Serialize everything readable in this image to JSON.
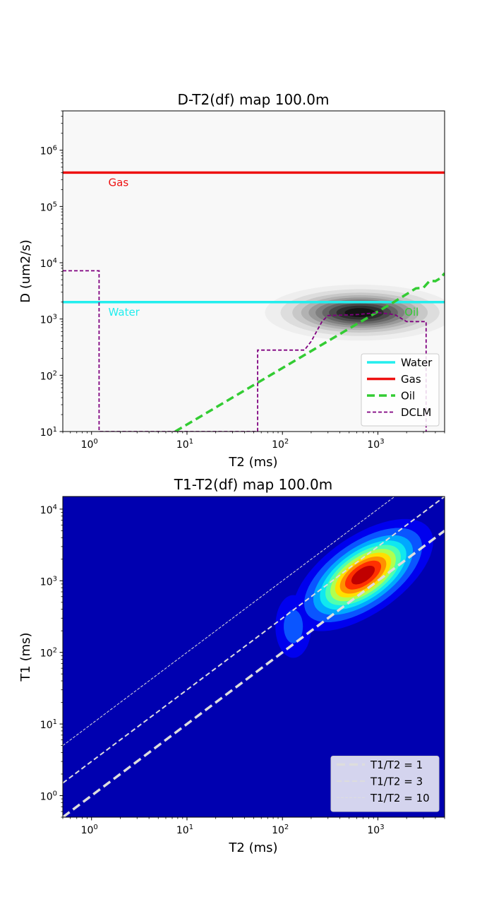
{
  "chart_data": [
    {
      "type": "contour-map",
      "title": "D-T2(df) map 100.0m",
      "xlabel": "T2 (ms)",
      "ylabel": "D (um2/s)",
      "xscale": "log",
      "yscale": "log",
      "xlim": [
        0.5,
        5000
      ],
      "ylim": [
        10,
        5000000
      ],
      "x_ticks": [
        {
          "v": 1,
          "e": "0"
        },
        {
          "v": 10,
          "e": "1"
        },
        {
          "v": 100,
          "e": "2"
        },
        {
          "v": 1000,
          "e": "3"
        }
      ],
      "y_ticks": [
        {
          "v": 10,
          "e": "1"
        },
        {
          "v": 100,
          "e": "2"
        },
        {
          "v": 1000,
          "e": "3"
        },
        {
          "v": 10000,
          "e": "4"
        },
        {
          "v": 100000,
          "e": "5"
        },
        {
          "v": 1000000,
          "e": "6"
        }
      ],
      "tick_base": "10",
      "background": "#f8f8f8",
      "density_peaks": [
        {
          "x": 650,
          "y": 1300,
          "sx": 0.42,
          "sy": 0.21,
          "weight": 1.0
        },
        {
          "x": 170,
          "y": 1100,
          "sx": 0.05,
          "sy": 0.05,
          "weight": 0.12
        }
      ],
      "contour_levels": [
        0.06,
        0.14,
        0.24,
        0.34,
        0.44,
        0.54,
        0.64,
        0.74,
        0.84,
        0.93
      ],
      "contour_colors": [
        "#eeeeee",
        "#dddddd",
        "#c8c8c8",
        "#b2b2b2",
        "#999999",
        "#808080",
        "#666666",
        "#4a4a4a",
        "#2e2e2e",
        "#141414"
      ],
      "series": [
        {
          "name": "Water",
          "kind": "hline",
          "y": 2000,
          "color": "#22eeee",
          "width": 3.5,
          "dash": ""
        },
        {
          "name": "Gas",
          "kind": "hline",
          "y": 400000,
          "color": "#ee1111",
          "width": 3.5,
          "dash": ""
        },
        {
          "name": "Oil",
          "kind": "line",
          "color": "#33cc33",
          "width": 3.5,
          "dash": "11,6",
          "x": [
            7.5,
            1400,
            2500,
            3000,
            3500,
            4000,
            4500,
            5000
          ],
          "y": [
            10,
            1900,
            3500,
            3600,
            4800,
            4700,
            5300,
            6500
          ]
        },
        {
          "name": "DCLM",
          "kind": "line",
          "color": "#800080",
          "width": 1.8,
          "dash": "5,3",
          "x": [
            0.5,
            1.2,
            1.2,
            1.2,
            55,
            55,
            55,
            170,
            200,
            260,
            300,
            600,
            1000,
            1500,
            2000,
            3000,
            3200,
            3200
          ],
          "y": [
            7200,
            7200,
            7200,
            10,
            10,
            280,
            280,
            280,
            400,
            900,
            1150,
            1200,
            1300,
            1200,
            900,
            900,
            900,
            10
          ]
        }
      ],
      "annotations": [
        {
          "text": "Gas",
          "x": 1.5,
          "y": 230000,
          "color": "#ee1111"
        },
        {
          "text": "Water",
          "x": 1.5,
          "y": 1150,
          "color": "#22eeee"
        },
        {
          "text": "Oil",
          "x": 1900,
          "y": 1150,
          "color": "#33cc33"
        }
      ],
      "legend": {
        "placement": "lower-right",
        "entries": [
          "Water",
          "Gas",
          "Oil",
          "DCLM"
        ]
      }
    },
    {
      "type": "contour-map",
      "title": "T1-T2(df) map 100.0m",
      "xlabel": "T2 (ms)",
      "ylabel": "T1 (ms)",
      "xscale": "log",
      "yscale": "log",
      "xlim": [
        0.5,
        5000
      ],
      "ylim": [
        0.5,
        15000
      ],
      "x_ticks": [
        {
          "v": 1,
          "e": "0"
        },
        {
          "v": 10,
          "e": "1"
        },
        {
          "v": 100,
          "e": "2"
        },
        {
          "v": 1000,
          "e": "3"
        }
      ],
      "y_ticks": [
        {
          "v": 1,
          "e": "0"
        },
        {
          "v": 10,
          "e": "1"
        },
        {
          "v": 100,
          "e": "2"
        },
        {
          "v": 1000,
          "e": "3"
        },
        {
          "v": 10000,
          "e": "4"
        }
      ],
      "tick_base": "10",
      "background": "#0000b0",
      "density_peaks": [
        {
          "x": 700,
          "y": 1200,
          "sx": 0.3,
          "sy": 0.32,
          "weight": 1.0,
          "rho": 0.6
        },
        {
          "x": 130,
          "y": 230,
          "sx": 0.12,
          "sy": 0.28,
          "weight": 0.17,
          "rho": 0.0
        }
      ],
      "contour_levels": [
        0.05,
        0.12,
        0.22,
        0.32,
        0.42,
        0.52,
        0.62,
        0.72,
        0.82,
        0.92
      ],
      "contour_colors": [
        "#0000ee",
        "#0a55ff",
        "#00a8ff",
        "#10e8f0",
        "#50ffb0",
        "#b0ff50",
        "#ffe000",
        "#ff9000",
        "#ff3000",
        "#c00000"
      ],
      "series": [
        {
          "name": "T1/T2 = 1",
          "kind": "ratio",
          "ratio": 1,
          "color": "#dddddd",
          "width": 3.5,
          "dash": "12,6"
        },
        {
          "name": "T1/T2 = 3",
          "kind": "ratio",
          "ratio": 3,
          "color": "#dddddd",
          "width": 2,
          "dash": "7,4"
        },
        {
          "name": "T1/T2 = 10",
          "kind": "ratio",
          "ratio": 10,
          "color": "#dddddd",
          "width": 1,
          "dash": "4,2"
        }
      ],
      "legend": {
        "placement": "lower-right",
        "entries": [
          "T1/T2 = 1",
          "T1/T2 = 3",
          "T1/T2 = 10"
        ]
      }
    }
  ]
}
